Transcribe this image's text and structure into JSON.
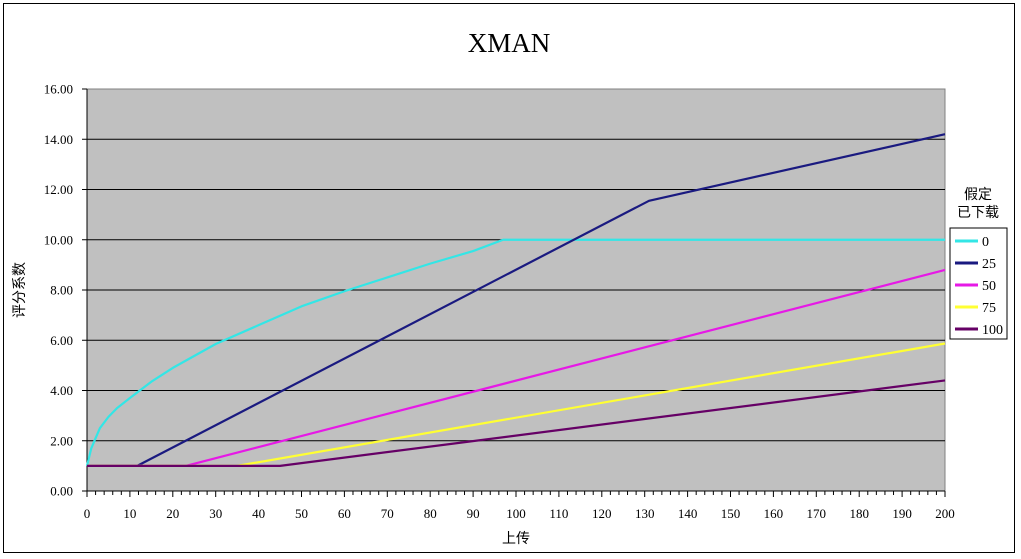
{
  "chart_data": {
    "type": "line",
    "title": "XMAN",
    "xlabel": "上传",
    "ylabel": "评分系数",
    "xlim": [
      0,
      200
    ],
    "ylim": [
      0,
      16
    ],
    "xticks": [
      0,
      10,
      20,
      30,
      40,
      50,
      60,
      70,
      80,
      90,
      100,
      110,
      120,
      130,
      140,
      150,
      160,
      170,
      180,
      190,
      200
    ],
    "yticks": [
      "0.00",
      "2.00",
      "4.00",
      "6.00",
      "8.00",
      "10.00",
      "12.00",
      "14.00",
      "16.00"
    ],
    "grid": true,
    "legend_position": "right",
    "legend_title": [
      "假定",
      "已下载"
    ],
    "series": [
      {
        "name": "0",
        "color": "#33E6E6",
        "points": [
          [
            0,
            1
          ],
          [
            1,
            1.7
          ],
          [
            2,
            2.1
          ],
          [
            3,
            2.5
          ],
          [
            5,
            2.95
          ],
          [
            7,
            3.3
          ],
          [
            10,
            3.7
          ],
          [
            15,
            4.35
          ],
          [
            20,
            4.9
          ],
          [
            30,
            5.85
          ],
          [
            40,
            6.6
          ],
          [
            50,
            7.35
          ],
          [
            60,
            7.95
          ],
          [
            70,
            8.5
          ],
          [
            80,
            9.05
          ],
          [
            90,
            9.55
          ],
          [
            97,
            10
          ],
          [
            200,
            10
          ]
        ]
      },
      {
        "name": "25",
        "color": "#1A1A80",
        "points": [
          [
            0,
            1
          ],
          [
            11.7,
            1
          ],
          [
            131,
            11.55
          ],
          [
            200,
            14.2
          ]
        ]
      },
      {
        "name": "50",
        "color": "#E619E6",
        "points": [
          [
            0,
            1
          ],
          [
            23,
            1
          ],
          [
            200,
            8.8
          ]
        ]
      },
      {
        "name": "75",
        "color": "#FFFF33",
        "points": [
          [
            0,
            1
          ],
          [
            35,
            1
          ],
          [
            200,
            5.87
          ]
        ]
      },
      {
        "name": "100",
        "color": "#660066",
        "points": [
          [
            0,
            1
          ],
          [
            45,
            1
          ],
          [
            200,
            4.4
          ]
        ]
      }
    ]
  }
}
